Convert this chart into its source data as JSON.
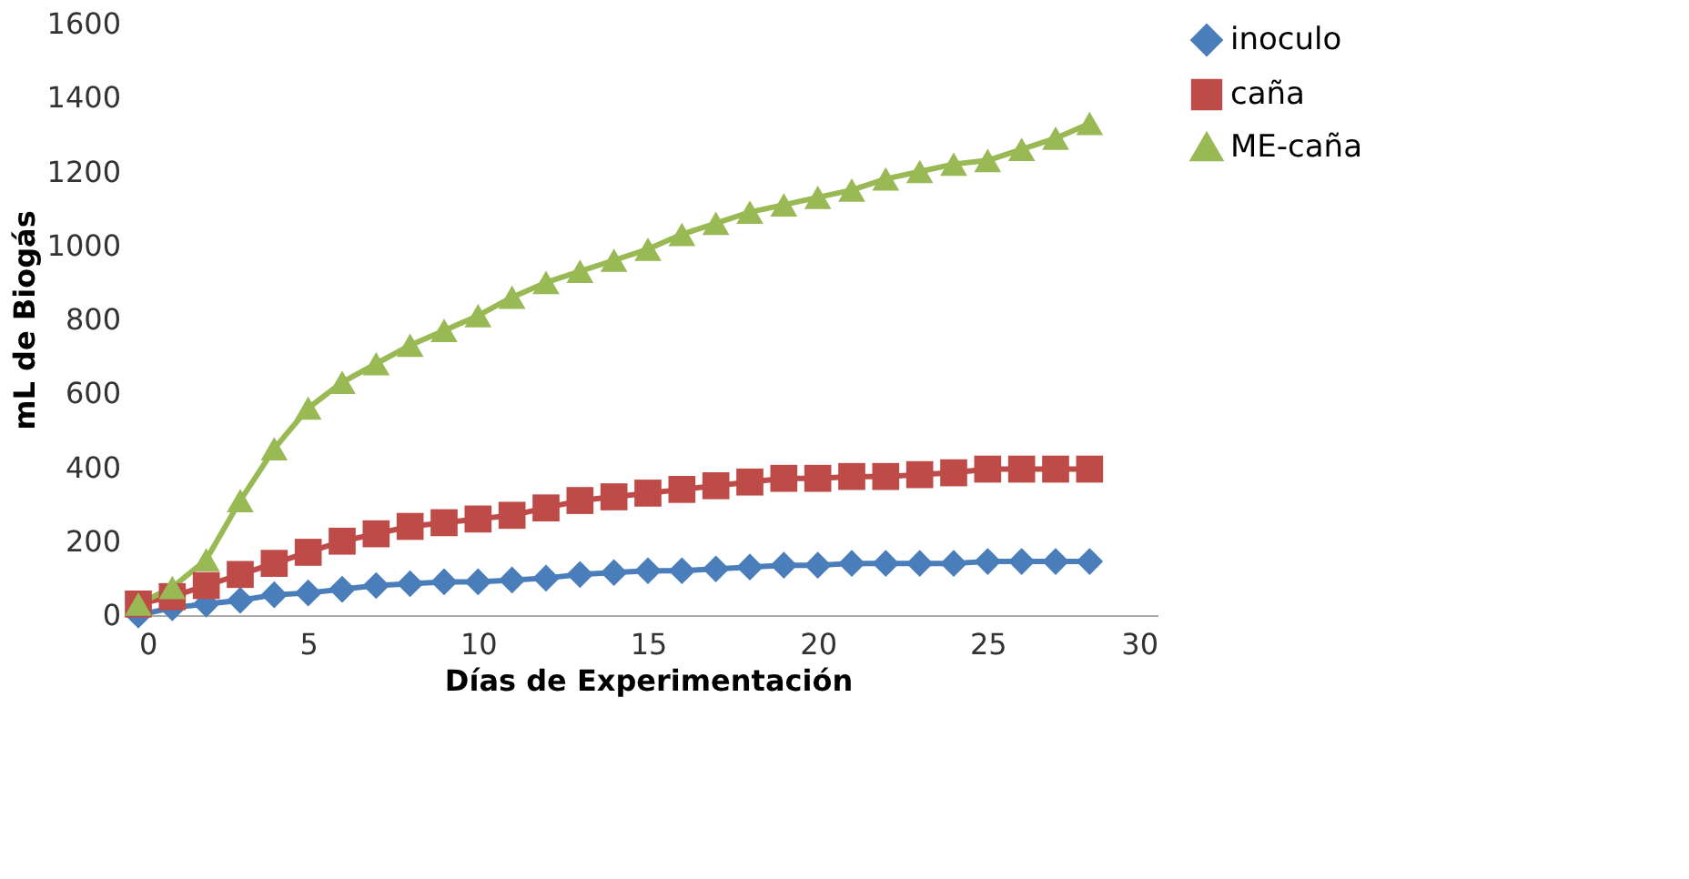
{
  "chart_data": {
    "type": "line",
    "xlabel": "Días de  Experimentación",
    "ylabel": "mL de Biogás",
    "x": [
      0,
      1,
      2,
      3,
      4,
      5,
      6,
      7,
      8,
      9,
      10,
      11,
      12,
      13,
      14,
      15,
      16,
      17,
      18,
      19,
      20,
      21,
      22,
      23,
      24,
      25,
      26,
      27,
      28
    ],
    "xlim": [
      0,
      30
    ],
    "xticks": [
      0,
      5,
      10,
      15,
      20,
      25,
      30
    ],
    "ylim": [
      0,
      1600
    ],
    "yticks": [
      0,
      200,
      400,
      600,
      800,
      1000,
      1200,
      1400,
      1600
    ],
    "grid": false,
    "legend": "right",
    "line_style": "solid",
    "series": [
      {
        "name": "inoculo",
        "color": "#4a7ebb",
        "marker": "diamond",
        "values": [
          0,
          20,
          30,
          40,
          55,
          60,
          70,
          80,
          85,
          90,
          90,
          95,
          100,
          110,
          115,
          120,
          120,
          125,
          130,
          135,
          135,
          140,
          140,
          140,
          140,
          145,
          145,
          145,
          145
        ]
      },
      {
        "name": "caña",
        "color": "#be4b48",
        "marker": "square",
        "values": [
          30,
          50,
          80,
          110,
          140,
          170,
          200,
          220,
          240,
          250,
          260,
          270,
          290,
          310,
          320,
          330,
          340,
          350,
          360,
          370,
          370,
          375,
          375,
          380,
          385,
          395,
          395,
          395,
          395
        ]
      },
      {
        "name": "ME-caña",
        "color": "#98b954",
        "marker": "triangle",
        "values": [
          30,
          75,
          150,
          310,
          450,
          560,
          630,
          680,
          730,
          770,
          810,
          860,
          900,
          930,
          960,
          990,
          1030,
          1060,
          1090,
          1110,
          1130,
          1150,
          1180,
          1200,
          1220,
          1230,
          1260,
          1290,
          1330
        ]
      }
    ]
  }
}
